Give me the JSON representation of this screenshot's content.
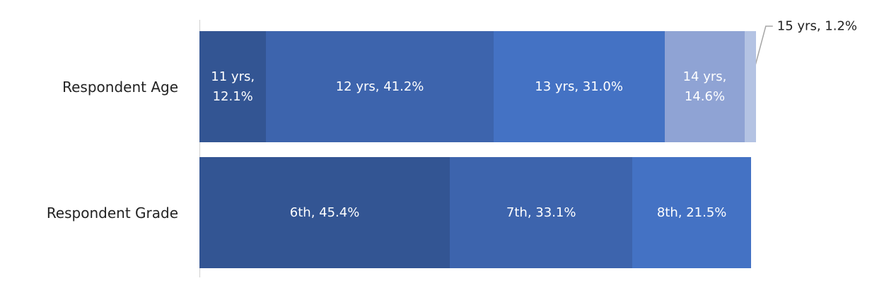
{
  "chart_data": {
    "type": "stacked_bar_horizontal",
    "categories": [
      "Respondent Age",
      "Respondent Grade"
    ],
    "segments": [
      [
        {
          "value": 12.1,
          "label": "11 yrs, 12.1%",
          "color": "#335593"
        },
        {
          "value": 41.2,
          "label": "12 yrs, 41.2%",
          "color": "#3d64ad"
        },
        {
          "value": 31.0,
          "label": "13 yrs, 31.0%",
          "color": "#4472c4"
        },
        {
          "value": 14.6,
          "label": "14 yrs, 14.6%",
          "color": "#8fa3d4"
        },
        {
          "value": 1.2,
          "label": "15 yrs, 1.2%",
          "color": "#b4c3e3"
        }
      ],
      [
        {
          "value": 45.4,
          "label": "6th, 45.4%",
          "color": "#335593"
        },
        {
          "value": 33.1,
          "label": "7th, 33.1%",
          "color": "#3d64ad"
        },
        {
          "value": 21.5,
          "label": "8th, 21.5%",
          "color": "#4472c4"
        }
      ]
    ]
  }
}
